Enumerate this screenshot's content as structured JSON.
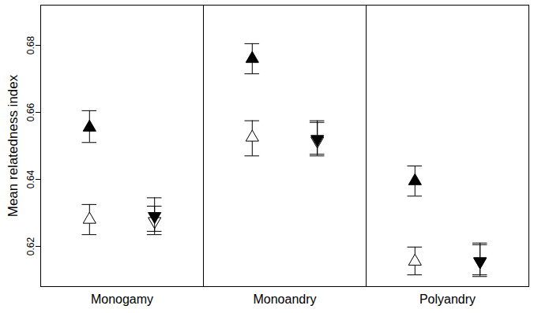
{
  "chart_data": {
    "type": "scatter",
    "categories": [
      "Monogamy",
      "Monoandry",
      "Polyandry"
    ],
    "y_label": "Mean relatedness index",
    "ylim": [
      0.608,
      0.692
    ],
    "yticks": [
      0.62,
      0.64,
      0.66,
      0.68
    ],
    "grid": false,
    "series": [
      {
        "marker": "filled-triangle-up",
        "color": "#000000",
        "values": [
          0.6555,
          0.676,
          0.6395
        ],
        "lower": [
          0.651,
          0.6715,
          0.635
        ],
        "upper": [
          0.6605,
          0.6805,
          0.644
        ]
      },
      {
        "marker": "open-triangle-up",
        "color": "#000000",
        "values": [
          0.628,
          0.6525,
          0.6155
        ],
        "lower": [
          0.6235,
          0.647,
          0.6115
        ],
        "upper": [
          0.6325,
          0.6575,
          0.6198
        ]
      },
      {
        "marker": "open-triangle-down",
        "color": "#000000",
        "values": [
          0.6275,
          0.6515,
          0.6155
        ],
        "lower": [
          0.6235,
          0.647,
          0.611
        ],
        "upper": [
          0.6345,
          0.6575,
          0.621
        ]
      },
      {
        "marker": "filled-triangle-down",
        "color": "#000000",
        "values": [
          0.629,
          0.652,
          0.6155
        ],
        "lower": [
          0.6245,
          0.6475,
          0.6115
        ],
        "upper": [
          0.632,
          0.657,
          0.6205
        ]
      }
    ]
  }
}
